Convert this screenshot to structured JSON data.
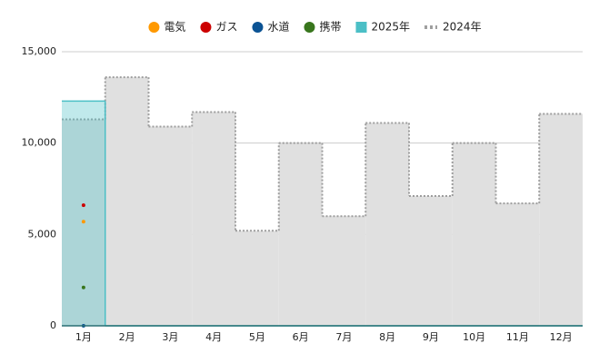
{
  "chart_data": {
    "type": "combo",
    "categories": [
      "1月",
      "2月",
      "3月",
      "4月",
      "5月",
      "6月",
      "7月",
      "8月",
      "9月",
      "10月",
      "11月",
      "12月"
    ],
    "series": [
      {
        "name": "電気",
        "type": "scatter",
        "color": "#ff9900",
        "values": [
          5700,
          null,
          null,
          null,
          null,
          null,
          null,
          null,
          null,
          null,
          null,
          null
        ]
      },
      {
        "name": "ガス",
        "type": "scatter",
        "color": "#cc0000",
        "values": [
          6600,
          null,
          null,
          null,
          null,
          null,
          null,
          null,
          null,
          null,
          null,
          null
        ]
      },
      {
        "name": "水道",
        "type": "scatter",
        "color": "#0b5394",
        "values": [
          0,
          null,
          null,
          null,
          null,
          null,
          null,
          null,
          null,
          null,
          null,
          null
        ]
      },
      {
        "name": "携帯",
        "type": "scatter",
        "color": "#38761d",
        "values": [
          2100,
          null,
          null,
          null,
          null,
          null,
          null,
          null,
          null,
          null,
          null,
          null
        ]
      },
      {
        "name": "2025年",
        "type": "stepped-area",
        "color": "#4bbfc6",
        "fill": "#4bbfc6",
        "fill_opacity": 0.35,
        "line_style": "solid",
        "values": [
          12300,
          0,
          0,
          0,
          0,
          0,
          0,
          0,
          0,
          0,
          0,
          0
        ]
      },
      {
        "name": "2024年",
        "type": "stepped-area",
        "color": "#9e9e9e",
        "fill": "#e0e0e0",
        "fill_opacity": 1,
        "line_style": "dotted",
        "values": [
          11300,
          13600,
          10900,
          11700,
          5200,
          10000,
          6000,
          11100,
          7100,
          10000,
          6700,
          11600
        ]
      }
    ],
    "ylim": [
      0,
      15000
    ],
    "yticks": [
      0,
      {
        "value": 5000,
        "label": "5,000"
      },
      {
        "value": 10000,
        "label": "10,000"
      },
      {
        "value": 15000,
        "label": "15,000"
      }
    ],
    "grid": true,
    "legend": "top"
  }
}
